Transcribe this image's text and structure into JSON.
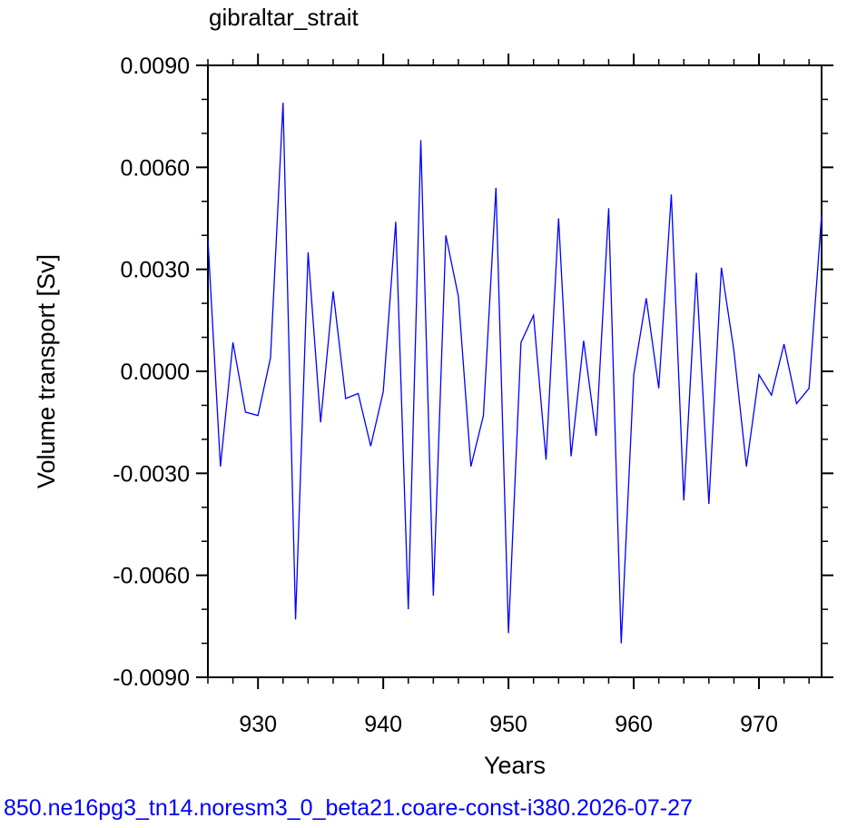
{
  "chart_data": {
    "type": "line",
    "title": "gibraltar_strait",
    "xlabel": "Years",
    "ylabel": "Volume transport [Sv]",
    "xlim": [
      926,
      975
    ],
    "ylim": [
      -0.009,
      0.009
    ],
    "x_ticks": [
      930,
      940,
      950,
      960,
      970
    ],
    "x_tick_labels": [
      "930",
      "940",
      "950",
      "960",
      "970"
    ],
    "y_ticks": [
      -0.009,
      -0.006,
      -0.003,
      0.0,
      0.003,
      0.006,
      0.009
    ],
    "y_tick_labels": [
      "-0.0090",
      "-0.0060",
      "-0.0030",
      "0.0000",
      "0.0030",
      "0.0060",
      "0.0090"
    ],
    "grid": false,
    "series": [
      {
        "color": "#0000ff",
        "x": [
          926,
          927,
          928,
          929,
          930,
          931,
          932,
          933,
          934,
          935,
          936,
          937,
          938,
          939,
          940,
          941,
          942,
          943,
          944,
          945,
          946,
          947,
          948,
          949,
          950,
          951,
          952,
          953,
          954,
          955,
          956,
          957,
          958,
          959,
          960,
          961,
          962,
          963,
          964,
          965,
          966,
          967,
          968,
          969,
          970,
          971,
          972,
          973,
          974,
          975
        ],
        "values": [
          0.0039,
          -0.0028,
          0.00085,
          -0.0012,
          -0.0013,
          0.0004,
          0.0079,
          -0.0073,
          0.0035,
          -0.0015,
          0.00235,
          -0.0008,
          -0.00065,
          -0.0022,
          -0.0006,
          0.0044,
          -0.007,
          0.0068,
          -0.0066,
          0.004,
          0.0022,
          -0.0028,
          -0.0013,
          0.0054,
          -0.0077,
          0.00085,
          0.00165,
          -0.0026,
          0.0045,
          -0.0025,
          0.0009,
          -0.0019,
          0.0048,
          -0.008,
          -0.0001,
          0.00215,
          -0.0005,
          0.0052,
          -0.0038,
          0.0029,
          -0.0039,
          0.00305,
          0.0006,
          -0.0028,
          -0.0001,
          -0.0007,
          0.0008,
          -0.00095,
          -0.0005,
          0.0046
        ]
      }
    ]
  },
  "footer_text": "850.ne16pg3_tn14.noresm3_0_beta21.coare-const-i380.2026-07-27"
}
